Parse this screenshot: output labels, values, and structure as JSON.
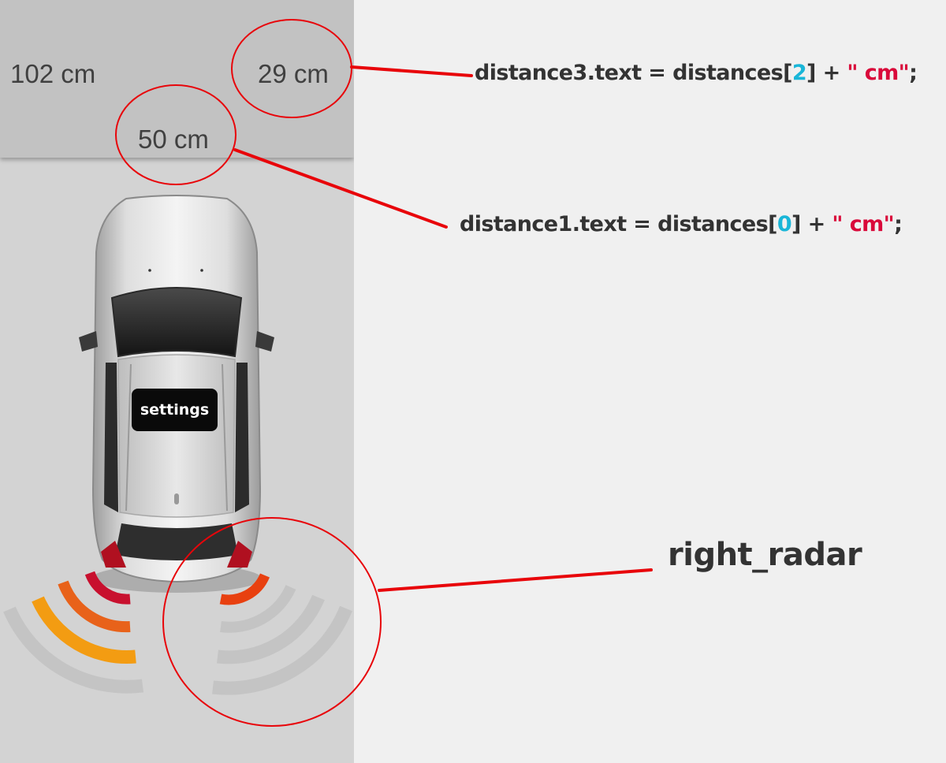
{
  "parking": {
    "distance1_text": "50 cm",
    "distance2_text": "102 cm",
    "distance3_text": "29 cm",
    "settings_label": "settings"
  },
  "annotations": {
    "code3": {
      "obj": "distance3.text = distances[",
      "index": "2",
      "mid": "] + ",
      "str": "\" cm\"",
      "end": ";"
    },
    "code1": {
      "obj": "distance1.text = distances[",
      "index": "0",
      "mid": "] + ",
      "str": "\" cm\"",
      "end": ";"
    },
    "radar_label": "right_radar"
  },
  "colors": {
    "callout_red": "#e8050a",
    "index_cyan": "#19b6d8",
    "string_red": "#d9093a",
    "radar_inner_red": "#c8102e",
    "radar_mid_orange": "#e8621a",
    "radar_outer_amber": "#f39c12",
    "radar_inactive": "#c4c4c4"
  },
  "icons": {
    "car": "car-top-view-icon"
  }
}
